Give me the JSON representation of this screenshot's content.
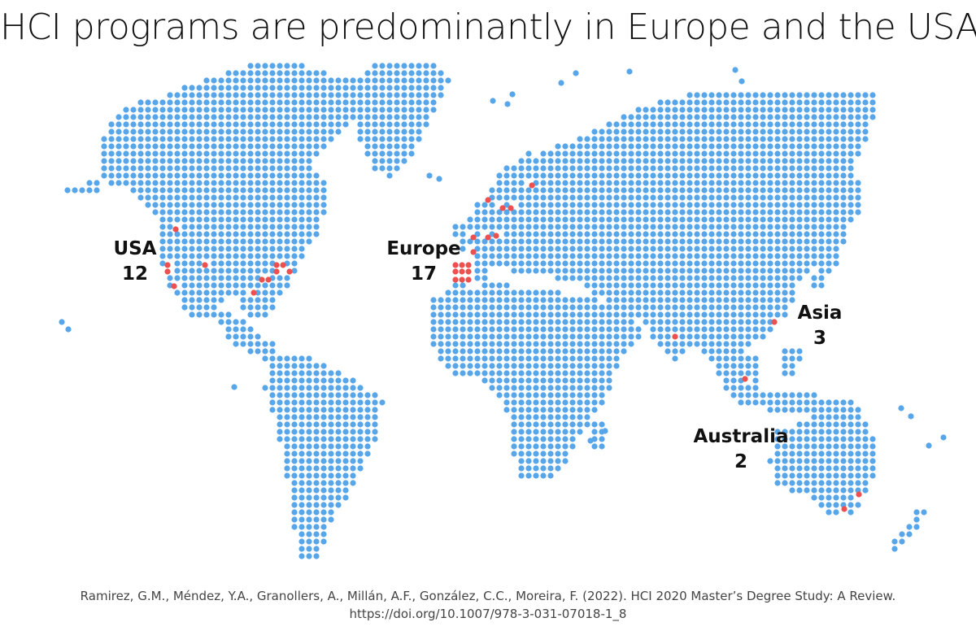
{
  "title": "HCI programs are predominantly in Europe and the USA",
  "colors": {
    "land_dot": "#58a6ea",
    "program_dot": "#ee4f4f",
    "text": "#111111",
    "citation": "#444444"
  },
  "regions": [
    {
      "id": "usa",
      "name": "USA",
      "count": "12"
    },
    {
      "id": "europe",
      "name": "Europe",
      "count": "17"
    },
    {
      "id": "asia",
      "name": "Asia",
      "count": "3"
    },
    {
      "id": "australia",
      "name": "Australia",
      "count": "2"
    }
  ],
  "citation": {
    "line1": "Ramirez, G.M., Méndez, Y.A., Granollers, A., Millán, A.F., González, C.C., Moreira, F. (2022). HCI 2020 Master’s Degree Study: A Review.",
    "line2": "https://doi.org/10.1007/978-3-031-07018-1_8"
  }
}
